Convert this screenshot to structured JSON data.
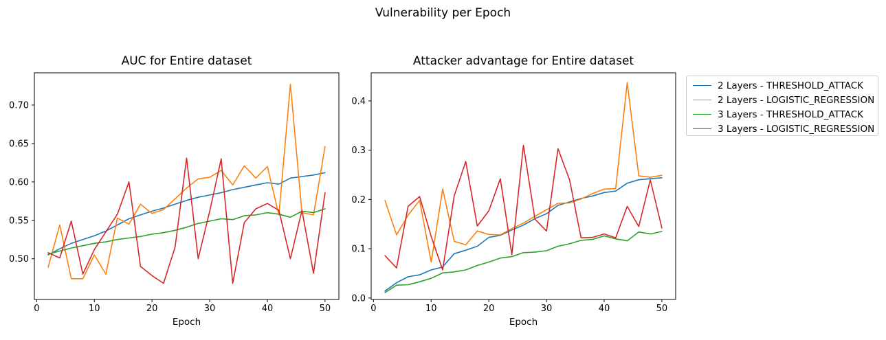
{
  "figure": {
    "suptitle": "Vulnerability per Epoch"
  },
  "colors": {
    "blue": "#1f77b4",
    "orange": "#ff7f0e",
    "green": "#2ca02c",
    "red": "#d62728",
    "axis": "#000000",
    "legend_border": "#cccccc"
  },
  "legend": {
    "position": "outside-upper-right",
    "entries": [
      {
        "label": "2 Layers - THRESHOLD_ATTACK",
        "color": "#1f77b4"
      },
      {
        "label": "2 Layers - LOGISTIC_REGRESSION",
        "color": "#ff7f0e"
      },
      {
        "label": "3 Layers - THRESHOLD_ATTACK",
        "color": "#2ca02c"
      },
      {
        "label": "3 Layers - LOGISTIC_REGRESSION",
        "color": "#d62728"
      }
    ]
  },
  "chart_data": [
    {
      "type": "line",
      "title": "AUC for Entire dataset",
      "xlabel": "Epoch",
      "ylabel": "",
      "grid": false,
      "x": [
        2,
        4,
        6,
        8,
        10,
        12,
        14,
        16,
        18,
        20,
        22,
        24,
        26,
        28,
        30,
        32,
        34,
        36,
        38,
        40,
        42,
        44,
        46,
        48,
        50
      ],
      "xlim": [
        -0.4,
        52.4
      ],
      "ylim": [
        0.447,
        0.742
      ],
      "xticks": [
        0,
        10,
        20,
        30,
        40,
        50
      ],
      "xtick_labels": [
        "0",
        "10",
        "20",
        "30",
        "40",
        "50"
      ],
      "yticks": [
        0.5,
        0.55,
        0.6,
        0.65,
        0.7
      ],
      "ytick_labels": [
        "0.50",
        "0.55",
        "0.60",
        "0.65",
        "0.70"
      ],
      "series": [
        {
          "name": "2 Layers - THRESHOLD_ATTACK",
          "color": "#1f77b4",
          "values": [
            0.505,
            0.513,
            0.52,
            0.525,
            0.53,
            0.536,
            0.544,
            0.552,
            0.557,
            0.562,
            0.566,
            0.571,
            0.576,
            0.58,
            0.583,
            0.586,
            0.59,
            0.593,
            0.596,
            0.599,
            0.597,
            0.605,
            0.607,
            0.609,
            0.612
          ]
        },
        {
          "name": "2 Layers - LOGISTIC_REGRESSION",
          "color": "#ff7f0e",
          "values": [
            0.489,
            0.544,
            0.474,
            0.474,
            0.505,
            0.48,
            0.553,
            0.545,
            0.571,
            0.559,
            0.564,
            0.578,
            0.592,
            0.604,
            0.606,
            0.615,
            0.596,
            0.621,
            0.605,
            0.62,
            0.557,
            0.727,
            0.56,
            0.557,
            0.646
          ]
        },
        {
          "name": "3 Layers - THRESHOLD_ATTACK",
          "color": "#2ca02c",
          "values": [
            0.506,
            0.51,
            0.514,
            0.517,
            0.52,
            0.522,
            0.525,
            0.527,
            0.529,
            0.532,
            0.534,
            0.537,
            0.541,
            0.546,
            0.549,
            0.552,
            0.551,
            0.556,
            0.557,
            0.56,
            0.558,
            0.554,
            0.562,
            0.56,
            0.565
          ]
        },
        {
          "name": "3 Layers - LOGISTIC_REGRESSION",
          "color": "#d62728",
          "values": [
            0.508,
            0.501,
            0.549,
            0.48,
            0.512,
            0.535,
            0.558,
            0.6,
            0.49,
            0.478,
            0.468,
            0.515,
            0.631,
            0.5,
            0.562,
            0.63,
            0.468,
            0.547,
            0.565,
            0.572,
            0.563,
            0.5,
            0.563,
            0.481,
            0.586
          ]
        }
      ]
    },
    {
      "type": "line",
      "title": "Attacker advantage for Entire dataset",
      "xlabel": "Epoch",
      "ylabel": "",
      "grid": false,
      "x": [
        2,
        4,
        6,
        8,
        10,
        12,
        14,
        16,
        18,
        20,
        22,
        24,
        26,
        28,
        30,
        32,
        34,
        36,
        38,
        40,
        42,
        44,
        46,
        48,
        50
      ],
      "xlim": [
        -0.4,
        52.4
      ],
      "ylim": [
        -0.003,
        0.457
      ],
      "xticks": [
        0,
        10,
        20,
        30,
        40,
        50
      ],
      "xtick_labels": [
        "0",
        "10",
        "20",
        "30",
        "40",
        "50"
      ],
      "yticks": [
        0.0,
        0.1,
        0.2,
        0.3,
        0.4
      ],
      "ytick_labels": [
        "0.0",
        "0.1",
        "0.2",
        "0.3",
        "0.4"
      ],
      "series": [
        {
          "name": "2 Layers - THRESHOLD_ATTACK",
          "color": "#1f77b4",
          "values": [
            0.014,
            0.031,
            0.043,
            0.047,
            0.057,
            0.063,
            0.09,
            0.097,
            0.105,
            0.123,
            0.127,
            0.138,
            0.148,
            0.161,
            0.171,
            0.188,
            0.195,
            0.202,
            0.207,
            0.214,
            0.217,
            0.233,
            0.24,
            0.242,
            0.244
          ]
        },
        {
          "name": "2 Layers - LOGISTIC_REGRESSION",
          "color": "#ff7f0e",
          "values": [
            0.198,
            0.128,
            0.168,
            0.198,
            0.073,
            0.221,
            0.115,
            0.108,
            0.136,
            0.129,
            0.128,
            0.141,
            0.152,
            0.166,
            0.179,
            0.192,
            0.193,
            0.201,
            0.212,
            0.221,
            0.222,
            0.437,
            0.248,
            0.245,
            0.249
          ]
        },
        {
          "name": "3 Layers - THRESHOLD_ATTACK",
          "color": "#2ca02c",
          "values": [
            0.011,
            0.026,
            0.027,
            0.033,
            0.04,
            0.051,
            0.053,
            0.057,
            0.066,
            0.073,
            0.081,
            0.084,
            0.092,
            0.093,
            0.096,
            0.105,
            0.11,
            0.117,
            0.119,
            0.126,
            0.12,
            0.116,
            0.134,
            0.13,
            0.135
          ]
        },
        {
          "name": "3 Layers - LOGISTIC_REGRESSION",
          "color": "#d62728",
          "values": [
            0.086,
            0.061,
            0.186,
            0.206,
            0.125,
            0.057,
            0.207,
            0.277,
            0.146,
            0.177,
            0.242,
            0.088,
            0.31,
            0.16,
            0.136,
            0.303,
            0.24,
            0.122,
            0.123,
            0.13,
            0.122,
            0.186,
            0.145,
            0.24,
            0.142
          ]
        }
      ]
    }
  ]
}
